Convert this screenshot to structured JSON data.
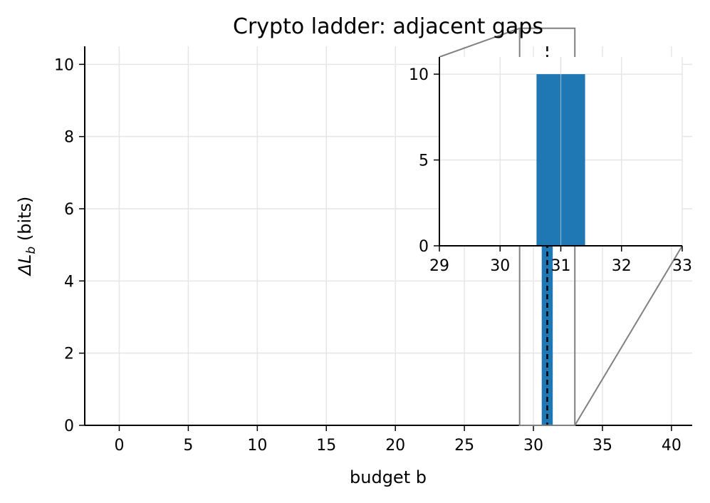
{
  "chart_data": {
    "type": "bar",
    "title": "Crypto ladder: adjacent gaps",
    "xlabel": "budget b",
    "ylabel_symbol": "ΔL",
    "ylabel_subscript": "b",
    "ylabel_unit": " (bits)",
    "xlim": [
      -2.5,
      41.5
    ],
    "ylim": [
      0,
      10.5
    ],
    "xticks": [
      0,
      5,
      10,
      15,
      20,
      25,
      30,
      35,
      40
    ],
    "yticks": [
      0,
      2,
      4,
      6,
      8,
      10
    ],
    "grid": true,
    "bars": [
      {
        "x": 31,
        "value": 10,
        "width": 0.8
      }
    ],
    "marker_line_x": 31,
    "colors": {
      "bar": "#1f77b4",
      "marker": "#000000",
      "zoom": "#808080",
      "grid": "#e6e6e6"
    },
    "inset": {
      "xlim": [
        29,
        33
      ],
      "ylim": [
        0,
        11
      ],
      "xticks": [
        29,
        30,
        31,
        32,
        33
      ],
      "yticks": [
        0,
        5,
        10
      ]
    }
  }
}
